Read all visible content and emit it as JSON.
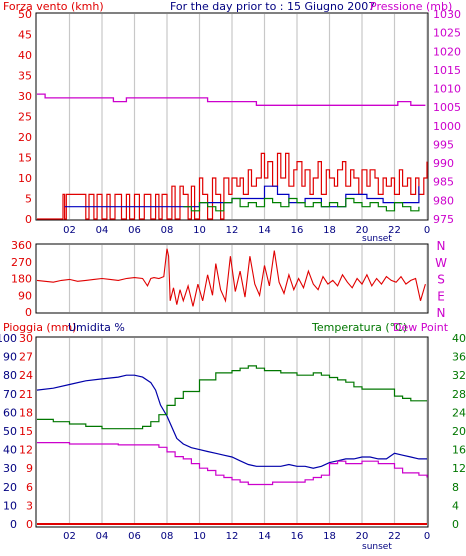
{
  "colors": {
    "wind_speed": "#e00000",
    "wind_gust": "#0000c0",
    "wind_avg": "#008000",
    "pressure": "#cc00cc",
    "direction": "#e00000",
    "rain": "#e00000",
    "humidity": "#0000aa",
    "temperature": "#007700",
    "dew_point": "#cc00cc",
    "frame": "#000000",
    "grid": "#c8c8c8",
    "background": "#ffffff"
  },
  "chart_data": [
    {
      "type": "line",
      "id": "wind",
      "title": "For the day prior to : 15 Giugno 2007",
      "left_label": "Forza vento (kmh)",
      "right_label": "Pressione (mb)",
      "x_tick_labels": [
        "02",
        "04",
        "06",
        "08",
        "10",
        "12",
        "14",
        "16",
        "18",
        "20",
        "22",
        "0"
      ],
      "x_annotation": "sunset",
      "y_left_ticks": [
        "0",
        "5",
        "10",
        "15",
        "20",
        "25",
        "30",
        "35",
        "40",
        "45",
        "50"
      ],
      "y_right_ticks": [
        "975",
        "980",
        "985",
        "990",
        "995",
        "1000",
        "1005",
        "1010",
        "1015",
        "1020",
        "1025",
        "1030"
      ],
      "ylim_left": [
        0,
        50
      ],
      "ylim_right": [
        975,
        1030
      ],
      "xlim": [
        0,
        24
      ],
      "grid": true,
      "series": [
        {
          "key": "pressure",
          "axis": "right",
          "x": [
            0,
            0.5,
            2.5,
            4.6,
            4.7,
            5.5,
            9.0,
            10.5,
            12.0,
            13.5,
            19.5,
            22.2,
            23.0,
            23.9
          ],
          "y": [
            1008.5,
            1007.5,
            1007.5,
            1007.5,
            1006.5,
            1007.5,
            1007.5,
            1006.5,
            1006.5,
            1005.5,
            1005.5,
            1006.5,
            1005.5,
            1005.5
          ]
        },
        {
          "key": "wind_speed",
          "axis": "left",
          "x": [
            0,
            1.5,
            1.6,
            1.7,
            1.8,
            3.0,
            3.2,
            3.5,
            3.7,
            4.0,
            4.3,
            4.5,
            4.8,
            5.2,
            5.5,
            5.7,
            6.0,
            6.3,
            6.6,
            6.8,
            7.0,
            7.3,
            7.5,
            7.7,
            8.0,
            8.3,
            8.5,
            8.8,
            9.0,
            9.3,
            9.5,
            9.7,
            10.0,
            10.2,
            10.5,
            10.8,
            11.0,
            11.3,
            11.5,
            11.8,
            12.0,
            12.3,
            12.5,
            12.7,
            13.0,
            13.2,
            13.5,
            13.8,
            14.0,
            14.2,
            14.5,
            14.8,
            15.0,
            15.3,
            15.5,
            15.8,
            16.0,
            16.3,
            16.5,
            16.8,
            17.0,
            17.3,
            17.5,
            17.8,
            18.0,
            18.3,
            18.5,
            18.8,
            19.0,
            19.3,
            19.5,
            19.8,
            20.0,
            20.3,
            20.5,
            20.8,
            21.0,
            21.3,
            21.5,
            21.8,
            22.0,
            22.3,
            22.5,
            22.8,
            23.0,
            23.3,
            23.5,
            23.8,
            24.0
          ],
          "y": [
            0,
            0,
            6,
            0,
            6,
            0,
            6,
            0,
            6,
            0,
            6,
            0,
            6,
            0,
            6,
            0,
            6,
            0,
            6,
            6,
            0,
            6,
            0,
            6,
            0,
            8,
            0,
            8,
            6,
            0,
            8,
            0,
            10,
            6,
            0,
            10,
            6,
            0,
            10,
            6,
            10,
            8,
            10,
            6,
            12,
            8,
            10,
            16,
            10,
            14,
            8,
            16,
            10,
            16,
            8,
            12,
            14,
            8,
            12,
            6,
            10,
            14,
            6,
            12,
            10,
            8,
            12,
            14,
            8,
            12,
            10,
            6,
            12,
            8,
            12,
            10,
            6,
            10,
            8,
            10,
            6,
            12,
            8,
            10,
            6,
            10,
            6,
            10,
            14
          ]
        },
        {
          "key": "wind_gust",
          "axis": "left",
          "x": [
            1.7,
            4.3,
            5.7,
            9.3,
            10.0,
            12.0,
            13.0,
            14.0,
            14.8,
            15.5,
            16.5,
            17.5,
            19.0,
            20.3,
            21.3,
            22.2,
            23.5
          ],
          "y": [
            3,
            3,
            3,
            3,
            4,
            5,
            5,
            8,
            6,
            4,
            5,
            3,
            6,
            5,
            4,
            4,
            8
          ]
        },
        {
          "key": "wind_avg",
          "axis": "left",
          "x": [
            9.0,
            9.5,
            10.0,
            10.5,
            11.0,
            11.5,
            12.0,
            12.5,
            13.0,
            13.5,
            14.0,
            14.5,
            15.0,
            15.5,
            16.0,
            16.5,
            17.0,
            17.5,
            18.0,
            18.5,
            19.0,
            19.5,
            20.0,
            20.5,
            21.0,
            21.5,
            22.0,
            22.5,
            23.0,
            23.5
          ],
          "y": [
            3,
            2,
            4,
            3,
            2,
            4,
            5,
            3,
            4,
            3,
            5,
            4,
            3,
            5,
            4,
            3,
            4,
            3,
            4,
            3,
            5,
            4,
            3,
            4,
            3,
            2,
            4,
            3,
            2,
            3
          ]
        }
      ]
    },
    {
      "type": "line",
      "id": "direction",
      "y_left_ticks": [
        "0",
        "90",
        "180",
        "270",
        "360"
      ],
      "y_right_labels": [
        "N",
        "W",
        "S",
        "E",
        "N"
      ],
      "ylim": [
        0,
        360
      ],
      "xlim": [
        0,
        24
      ],
      "grid": true,
      "series": [
        {
          "key": "direction",
          "x": [
            0,
            0.5,
            1.0,
            1.5,
            2.0,
            2.5,
            3.0,
            3.5,
            4.0,
            4.5,
            5.0,
            5.5,
            6.0,
            6.5,
            6.8,
            7.0,
            7.2,
            7.5,
            7.8,
            8.0,
            8.1,
            8.2,
            8.4,
            8.6,
            8.8,
            9.0,
            9.3,
            9.6,
            9.9,
            10.2,
            10.5,
            10.8,
            11.0,
            11.3,
            11.6,
            11.9,
            12.2,
            12.5,
            12.8,
            13.1,
            13.4,
            13.7,
            14.0,
            14.3,
            14.6,
            14.9,
            15.2,
            15.5,
            15.8,
            16.1,
            16.4,
            16.7,
            17.0,
            17.3,
            17.6,
            17.9,
            18.2,
            18.5,
            18.8,
            19.1,
            19.4,
            19.7,
            20.0,
            20.3,
            20.6,
            20.9,
            21.2,
            21.5,
            21.8,
            22.1,
            22.4,
            22.7,
            23.0,
            23.3,
            23.6,
            23.9
          ],
          "y": [
            170,
            165,
            160,
            170,
            175,
            165,
            170,
            175,
            180,
            175,
            170,
            180,
            185,
            180,
            140,
            180,
            185,
            180,
            190,
            340,
            300,
            60,
            130,
            40,
            120,
            60,
            140,
            30,
            150,
            60,
            200,
            90,
            260,
            120,
            60,
            300,
            110,
            220,
            80,
            300,
            150,
            90,
            250,
            140,
            330,
            160,
            100,
            200,
            120,
            180,
            130,
            220,
            150,
            120,
            190,
            150,
            170,
            140,
            200,
            160,
            130,
            180,
            150,
            200,
            140,
            180,
            150,
            190,
            170,
            160,
            190,
            150,
            170,
            180,
            60,
            150
          ]
        }
      ]
    },
    {
      "type": "line",
      "id": "humidity_temp",
      "labels": [
        "Pioggia (mm)",
        "Umidita %",
        "Temperatura (°C)",
        "Dew Point"
      ],
      "y_rain_ticks": [
        "0",
        "10",
        "20",
        "30",
        "40",
        "50",
        "60",
        "70",
        "80",
        "90",
        "100"
      ],
      "y_hum_ticks": [
        "0",
        "3",
        "6",
        "9",
        "12",
        "15",
        "18",
        "21",
        "24",
        "27",
        "30"
      ],
      "y_temp_ticks": [
        "0",
        "4",
        "8",
        "12",
        "16",
        "20",
        "24",
        "28",
        "32",
        "36",
        "40"
      ],
      "x_tick_labels": [
        "02",
        "04",
        "06",
        "08",
        "10",
        "12",
        "14",
        "16",
        "18",
        "20",
        "22",
        "0"
      ],
      "x_annotation": "sunset",
      "ylim_humidity": [
        0,
        100
      ],
      "ylim_temperature": [
        0,
        40
      ],
      "xlim": [
        0,
        24
      ],
      "grid": true,
      "series": [
        {
          "key": "humidity",
          "axis": "humidity",
          "x": [
            0,
            1.0,
            2.0,
            3.0,
            4.0,
            5.0,
            5.5,
            6.0,
            6.5,
            7.0,
            7.3,
            7.6,
            8.0,
            8.3,
            8.6,
            9.0,
            9.5,
            10.0,
            10.5,
            11.0,
            11.5,
            12.0,
            12.5,
            13.0,
            13.5,
            14.0,
            14.5,
            15.0,
            15.5,
            16.0,
            16.5,
            17.0,
            17.5,
            18.0,
            18.5,
            19.0,
            19.5,
            20.0,
            20.5,
            21.0,
            21.5,
            22.0,
            22.5,
            23.0,
            23.5,
            24.0
          ],
          "y": [
            72,
            73,
            75,
            77,
            78,
            79,
            80,
            80,
            79,
            76,
            72,
            64,
            58,
            52,
            46,
            43,
            41,
            40,
            39,
            38,
            37,
            36,
            34,
            32,
            31,
            31,
            31,
            31,
            32,
            31,
            31,
            30,
            31,
            33,
            34,
            35,
            35,
            36,
            36,
            35,
            35,
            38,
            37,
            36,
            35,
            35
          ]
        },
        {
          "key": "temperature",
          "axis": "temperature",
          "x": [
            0,
            1.0,
            2.0,
            3.0,
            4.0,
            5.0,
            6.0,
            6.5,
            7.0,
            7.5,
            8.0,
            8.5,
            9.0,
            10.0,
            11.0,
            12.0,
            12.5,
            13.0,
            13.5,
            14.0,
            14.5,
            15.0,
            15.5,
            16.0,
            16.5,
            17.0,
            17.5,
            18.0,
            18.5,
            19.0,
            19.5,
            20.0,
            20.5,
            21.0,
            21.5,
            22.0,
            22.5,
            23.0,
            23.5,
            24.0
          ],
          "y": [
            22.5,
            22,
            21.5,
            21,
            20.5,
            20.5,
            20.5,
            21,
            22,
            23.5,
            25.5,
            27,
            28.5,
            31,
            32.5,
            33,
            33.5,
            34,
            33.5,
            33,
            33,
            32.5,
            32.5,
            32,
            32,
            32.5,
            32,
            31.5,
            31,
            30.5,
            29.5,
            29,
            29,
            29,
            29,
            27.5,
            27,
            26.5,
            26.5,
            26.5
          ]
        },
        {
          "key": "dew_point",
          "axis": "temperature",
          "x": [
            0,
            1.0,
            2.0,
            3.0,
            4.0,
            5.0,
            6.0,
            7.0,
            7.5,
            8.0,
            8.5,
            9.0,
            9.5,
            10.0,
            10.5,
            11.0,
            11.5,
            12.0,
            12.5,
            13.0,
            13.5,
            14.0,
            14.5,
            15.0,
            15.5,
            16.0,
            16.5,
            17.0,
            17.5,
            18.0,
            18.5,
            19.0,
            19.5,
            20.0,
            20.5,
            21.0,
            21.5,
            22.0,
            22.5,
            23.0,
            23.5,
            24.0
          ],
          "y": [
            17.5,
            17.5,
            17.2,
            17.2,
            17.2,
            17,
            17,
            17,
            16.5,
            15.5,
            14.5,
            14,
            13,
            12,
            11.5,
            10.5,
            10,
            9.5,
            9,
            8.5,
            8.5,
            8.5,
            9,
            9,
            9,
            9,
            9.5,
            10,
            10.5,
            13,
            13.5,
            13,
            13,
            13.5,
            13.5,
            13,
            13,
            12,
            11,
            11,
            10.5,
            10
          ]
        },
        {
          "key": "rain",
          "axis": "humidity",
          "x": [
            0,
            24
          ],
          "y": [
            0,
            0
          ]
        }
      ]
    }
  ]
}
